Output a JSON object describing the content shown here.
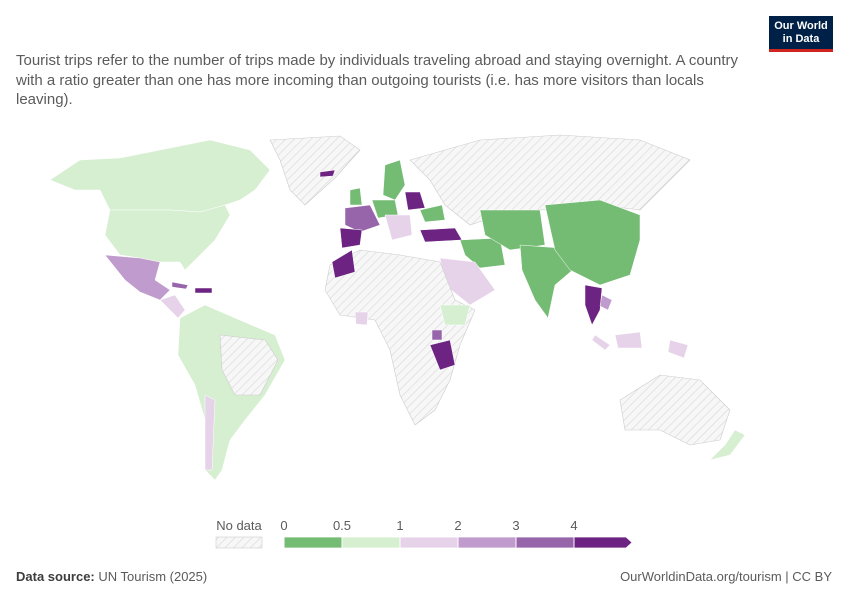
{
  "subtitle": "Tourist trips refer to the number of trips made by individuals traveling abroad and staying overnight. A country with a ratio greater than one has more incoming than outgoing tourists (i.e. has more visitors than locals leaving).",
  "logo": {
    "lines": [
      "Our World",
      "in Data"
    ]
  },
  "legend": {
    "no_data_label": "No data",
    "bins": [
      0,
      0.5,
      1,
      2,
      3,
      4
    ],
    "colors": [
      "#74bb74",
      "#d6efd0",
      "#e6d3e9",
      "#c09bcd",
      "#9766aa",
      "#6c2381"
    ]
  },
  "source": {
    "label": "Data source:",
    "text": "UN Tourism (2025)"
  },
  "footer_link": "OurWorldinData.org/tourism | CC BY"
}
